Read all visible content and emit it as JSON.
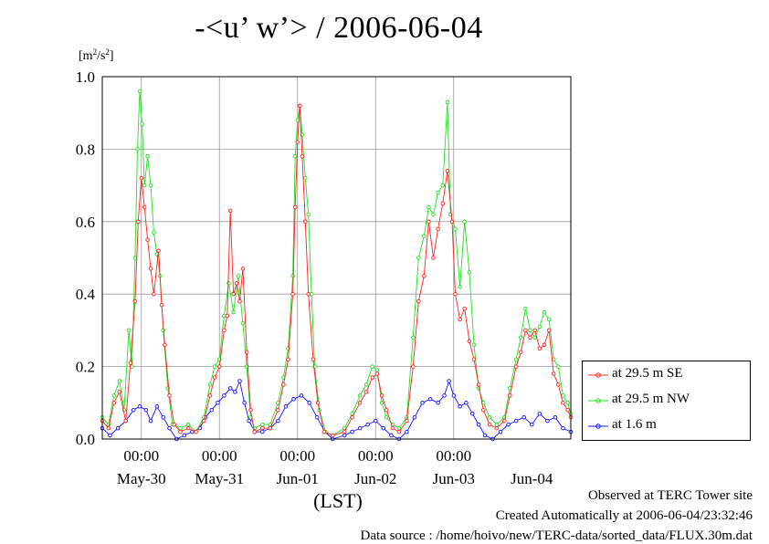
{
  "title": "-<u’ w’> / 2006-06-04",
  "y_unit": {
    "base": "[m",
    "exp1": "2",
    "mid": "/s",
    "exp2": "2",
    "end": "]"
  },
  "x_axis_label": "(LST)",
  "footer": {
    "line1": "Observed at TERC Tower site",
    "line2": "Created Automatically at 2006-06-04/23:32:46",
    "line3": "Data source : /home/hoivo/new/TERC-data/sorted_data/FLUX.30m.dat"
  },
  "colors": {
    "se": "#ff2020",
    "nw": "#20e020",
    "low": "#1010ff",
    "black_link": "#000000",
    "grid": "#999999"
  },
  "chart_data": {
    "type": "line",
    "ylim": [
      0,
      1.0
    ],
    "yticks": [
      0.0,
      0.2,
      0.4,
      0.6,
      0.8,
      1.0
    ],
    "ytick_labels": [
      "0.0",
      "0.2",
      "0.4",
      "0.6",
      "0.8",
      "1.0"
    ],
    "xlim": [
      0,
      6
    ],
    "x_unit": "days since 2006-05-29 12:00 LST",
    "time_ticks": [
      0.5,
      1.5,
      2.5,
      3.5,
      4.5
    ],
    "time_tick_labels": [
      "00:00",
      "00:00",
      "00:00",
      "00:00",
      "00:00"
    ],
    "day_labels": [
      "May-30",
      "May-31",
      "Jun-01",
      "Jun-02",
      "Jun-03",
      "Jun-04"
    ],
    "day_label_positions": [
      0.5,
      1.5,
      2.5,
      3.5,
      4.5,
      5.5
    ],
    "grid": true,
    "legend_position": "right",
    "series": [
      {
        "name": "at 29.5 m SE",
        "color": "#ff2020",
        "keypoints": [
          [
            0.0,
            0.05
          ],
          [
            0.08,
            0.03
          ],
          [
            0.15,
            0.1
          ],
          [
            0.22,
            0.13
          ],
          [
            0.3,
            0.05
          ],
          [
            0.36,
            0.21
          ],
          [
            0.42,
            0.38
          ],
          [
            0.46,
            0.6
          ],
          [
            0.5,
            0.72
          ],
          [
            0.54,
            0.64
          ],
          [
            0.58,
            0.55
          ],
          [
            0.62,
            0.47
          ],
          [
            0.66,
            0.4
          ],
          [
            0.72,
            0.52
          ],
          [
            0.76,
            0.37
          ],
          [
            0.8,
            0.26
          ],
          [
            0.86,
            0.12
          ],
          [
            0.92,
            0.04
          ],
          [
            1.0,
            0.02
          ],
          [
            1.1,
            0.03
          ],
          [
            1.2,
            0.02
          ],
          [
            1.3,
            0.05
          ],
          [
            1.38,
            0.12
          ],
          [
            1.44,
            0.17
          ],
          [
            1.5,
            0.2
          ],
          [
            1.56,
            0.3
          ],
          [
            1.6,
            0.34
          ],
          [
            1.64,
            0.63
          ],
          [
            1.68,
            0.4
          ],
          [
            1.72,
            0.43
          ],
          [
            1.76,
            0.38
          ],
          [
            1.8,
            0.47
          ],
          [
            1.85,
            0.24
          ],
          [
            1.9,
            0.08
          ],
          [
            1.95,
            0.02
          ],
          [
            2.05,
            0.03
          ],
          [
            2.15,
            0.03
          ],
          [
            2.25,
            0.08
          ],
          [
            2.32,
            0.15
          ],
          [
            2.38,
            0.22
          ],
          [
            2.44,
            0.4
          ],
          [
            2.47,
            0.64
          ],
          [
            2.5,
            0.82
          ],
          [
            2.53,
            0.92
          ],
          [
            2.56,
            0.78
          ],
          [
            2.6,
            0.6
          ],
          [
            2.64,
            0.4
          ],
          [
            2.7,
            0.22
          ],
          [
            2.76,
            0.1
          ],
          [
            2.84,
            0.02
          ],
          [
            2.95,
            0.01
          ],
          [
            3.1,
            0.02
          ],
          [
            3.2,
            0.06
          ],
          [
            3.3,
            0.1
          ],
          [
            3.38,
            0.13
          ],
          [
            3.46,
            0.17
          ],
          [
            3.52,
            0.18
          ],
          [
            3.58,
            0.12
          ],
          [
            3.64,
            0.08
          ],
          [
            3.72,
            0.03
          ],
          [
            3.8,
            0.02
          ],
          [
            3.9,
            0.05
          ],
          [
            3.98,
            0.2
          ],
          [
            4.05,
            0.38
          ],
          [
            4.12,
            0.45
          ],
          [
            4.18,
            0.6
          ],
          [
            4.24,
            0.5
          ],
          [
            4.3,
            0.58
          ],
          [
            4.36,
            0.65
          ],
          [
            4.42,
            0.74
          ],
          [
            4.48,
            0.6
          ],
          [
            4.52,
            0.4
          ],
          [
            4.58,
            0.33
          ],
          [
            4.64,
            0.36
          ],
          [
            4.7,
            0.27
          ],
          [
            4.76,
            0.22
          ],
          [
            4.82,
            0.15
          ],
          [
            4.88,
            0.08
          ],
          [
            4.96,
            0.04
          ],
          [
            5.05,
            0.03
          ],
          [
            5.15,
            0.05
          ],
          [
            5.22,
            0.12
          ],
          [
            5.3,
            0.2
          ],
          [
            5.36,
            0.24
          ],
          [
            5.42,
            0.3
          ],
          [
            5.48,
            0.28
          ],
          [
            5.54,
            0.3
          ],
          [
            5.6,
            0.25
          ],
          [
            5.66,
            0.26
          ],
          [
            5.72,
            0.3
          ],
          [
            5.78,
            0.18
          ],
          [
            5.84,
            0.15
          ],
          [
            5.9,
            0.1
          ],
          [
            5.96,
            0.08
          ],
          [
            6.0,
            0.06
          ]
        ]
      },
      {
        "name": "at 29.5 m NW",
        "color": "#20e020",
        "keypoints": [
          [
            0.0,
            0.06
          ],
          [
            0.08,
            0.04
          ],
          [
            0.15,
            0.12
          ],
          [
            0.22,
            0.16
          ],
          [
            0.28,
            0.08
          ],
          [
            0.34,
            0.3
          ],
          [
            0.38,
            0.2
          ],
          [
            0.42,
            0.5
          ],
          [
            0.45,
            0.8
          ],
          [
            0.48,
            0.96
          ],
          [
            0.51,
            0.87
          ],
          [
            0.54,
            0.7
          ],
          [
            0.58,
            0.78
          ],
          [
            0.62,
            0.7
          ],
          [
            0.66,
            0.57
          ],
          [
            0.7,
            0.51
          ],
          [
            0.74,
            0.45
          ],
          [
            0.78,
            0.3
          ],
          [
            0.84,
            0.14
          ],
          [
            0.9,
            0.04
          ],
          [
            1.0,
            0.03
          ],
          [
            1.1,
            0.04
          ],
          [
            1.2,
            0.02
          ],
          [
            1.3,
            0.06
          ],
          [
            1.38,
            0.15
          ],
          [
            1.44,
            0.2
          ],
          [
            1.5,
            0.22
          ],
          [
            1.56,
            0.34
          ],
          [
            1.62,
            0.43
          ],
          [
            1.68,
            0.35
          ],
          [
            1.74,
            0.45
          ],
          [
            1.8,
            0.32
          ],
          [
            1.85,
            0.2
          ],
          [
            1.9,
            0.06
          ],
          [
            1.95,
            0.03
          ],
          [
            2.05,
            0.04
          ],
          [
            2.15,
            0.04
          ],
          [
            2.25,
            0.1
          ],
          [
            2.32,
            0.17
          ],
          [
            2.38,
            0.25
          ],
          [
            2.44,
            0.45
          ],
          [
            2.47,
            0.78
          ],
          [
            2.5,
            0.88
          ],
          [
            2.53,
            0.92
          ],
          [
            2.56,
            0.84
          ],
          [
            2.6,
            0.72
          ],
          [
            2.64,
            0.62
          ],
          [
            2.68,
            0.4
          ],
          [
            2.72,
            0.2
          ],
          [
            2.78,
            0.08
          ],
          [
            2.86,
            0.02
          ],
          [
            2.95,
            0.01
          ],
          [
            3.1,
            0.03
          ],
          [
            3.2,
            0.07
          ],
          [
            3.3,
            0.12
          ],
          [
            3.38,
            0.15
          ],
          [
            3.46,
            0.2
          ],
          [
            3.52,
            0.19
          ],
          [
            3.58,
            0.1
          ],
          [
            3.64,
            0.06
          ],
          [
            3.72,
            0.04
          ],
          [
            3.8,
            0.03
          ],
          [
            3.9,
            0.06
          ],
          [
            3.98,
            0.28
          ],
          [
            4.05,
            0.5
          ],
          [
            4.12,
            0.56
          ],
          [
            4.18,
            0.64
          ],
          [
            4.24,
            0.62
          ],
          [
            4.3,
            0.68
          ],
          [
            4.36,
            0.7
          ],
          [
            4.42,
            0.93
          ],
          [
            4.46,
            0.62
          ],
          [
            4.52,
            0.58
          ],
          [
            4.58,
            0.42
          ],
          [
            4.64,
            0.6
          ],
          [
            4.7,
            0.46
          ],
          [
            4.76,
            0.26
          ],
          [
            4.82,
            0.14
          ],
          [
            4.88,
            0.1
          ],
          [
            4.96,
            0.06
          ],
          [
            5.05,
            0.04
          ],
          [
            5.15,
            0.06
          ],
          [
            5.22,
            0.14
          ],
          [
            5.3,
            0.22
          ],
          [
            5.36,
            0.28
          ],
          [
            5.42,
            0.36
          ],
          [
            5.48,
            0.3
          ],
          [
            5.54,
            0.28
          ],
          [
            5.6,
            0.31
          ],
          [
            5.66,
            0.35
          ],
          [
            5.72,
            0.33
          ],
          [
            5.78,
            0.22
          ],
          [
            5.84,
            0.2
          ],
          [
            5.9,
            0.12
          ],
          [
            5.96,
            0.1
          ],
          [
            6.0,
            0.07
          ]
        ]
      },
      {
        "name": "at 1.6 m",
        "color": "#1010ff",
        "keypoints": [
          [
            0.0,
            0.03
          ],
          [
            0.1,
            0.01
          ],
          [
            0.2,
            0.03
          ],
          [
            0.3,
            0.05
          ],
          [
            0.4,
            0.08
          ],
          [
            0.48,
            0.09
          ],
          [
            0.56,
            0.08
          ],
          [
            0.62,
            0.05
          ],
          [
            0.7,
            0.09
          ],
          [
            0.78,
            0.06
          ],
          [
            0.86,
            0.03
          ],
          [
            0.95,
            0.0
          ],
          [
            1.05,
            0.01
          ],
          [
            1.15,
            0.02
          ],
          [
            1.25,
            0.03
          ],
          [
            1.32,
            0.06
          ],
          [
            1.4,
            0.08
          ],
          [
            1.48,
            0.1
          ],
          [
            1.56,
            0.12
          ],
          [
            1.64,
            0.14
          ],
          [
            1.7,
            0.13
          ],
          [
            1.76,
            0.16
          ],
          [
            1.82,
            0.1
          ],
          [
            1.88,
            0.05
          ],
          [
            1.95,
            0.02
          ],
          [
            2.05,
            0.02
          ],
          [
            2.15,
            0.03
          ],
          [
            2.25,
            0.05
          ],
          [
            2.35,
            0.09
          ],
          [
            2.45,
            0.11
          ],
          [
            2.55,
            0.12
          ],
          [
            2.65,
            0.1
          ],
          [
            2.75,
            0.06
          ],
          [
            2.85,
            0.02
          ],
          [
            2.95,
            0.0
          ],
          [
            3.1,
            0.01
          ],
          [
            3.2,
            0.02
          ],
          [
            3.3,
            0.03
          ],
          [
            3.4,
            0.04
          ],
          [
            3.5,
            0.05
          ],
          [
            3.6,
            0.03
          ],
          [
            3.7,
            0.01
          ],
          [
            3.8,
            0.0
          ],
          [
            3.9,
            0.02
          ],
          [
            4.0,
            0.06
          ],
          [
            4.1,
            0.1
          ],
          [
            4.2,
            0.11
          ],
          [
            4.3,
            0.1
          ],
          [
            4.38,
            0.12
          ],
          [
            4.44,
            0.16
          ],
          [
            4.5,
            0.12
          ],
          [
            4.58,
            0.09
          ],
          [
            4.66,
            0.1
          ],
          [
            4.74,
            0.07
          ],
          [
            4.82,
            0.04
          ],
          [
            4.9,
            0.01
          ],
          [
            5.0,
            0.0
          ],
          [
            5.1,
            0.02
          ],
          [
            5.2,
            0.04
          ],
          [
            5.3,
            0.05
          ],
          [
            5.4,
            0.06
          ],
          [
            5.5,
            0.04
          ],
          [
            5.6,
            0.07
          ],
          [
            5.7,
            0.05
          ],
          [
            5.8,
            0.06
          ],
          [
            5.9,
            0.03
          ],
          [
            6.0,
            0.02
          ]
        ]
      }
    ]
  }
}
